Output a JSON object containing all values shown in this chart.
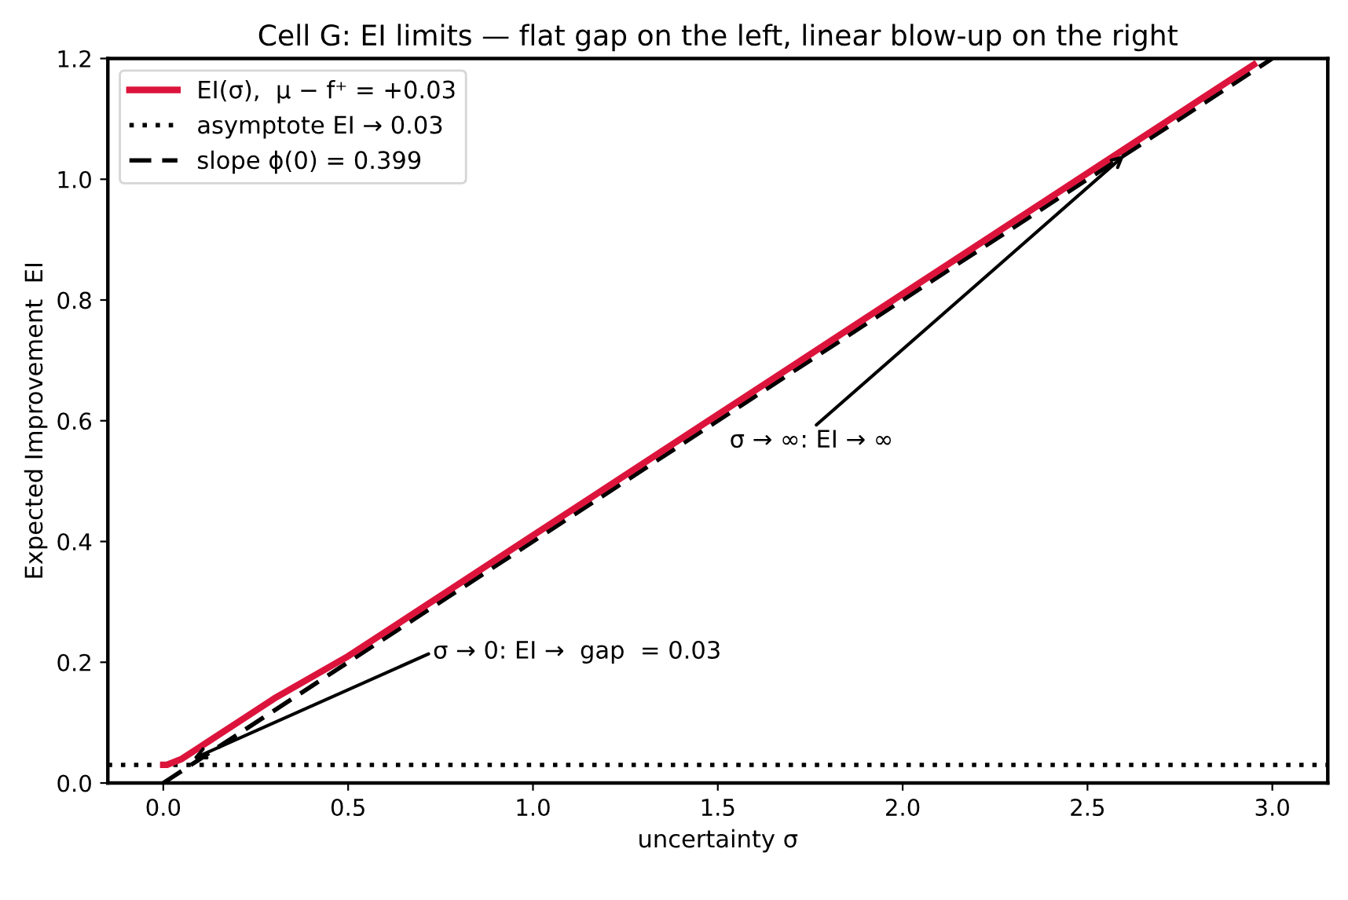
{
  "chart_data": {
    "type": "line",
    "title": "Cell G: EI limits — flat gap on the left, linear blow-up on the right",
    "xlabel": "uncertainty σ",
    "ylabel": "Expected Improvement  EI",
    "series": [
      {
        "name": "EI(σ),  μ − f⁺ = +0.03",
        "color": "#dc143c",
        "line_style": "solid",
        "x": [
          0,
          0.01,
          0.05,
          0.1,
          0.2,
          0.3,
          0.5,
          0.75,
          1.0,
          1.5,
          2.0,
          2.5,
          2.95
        ],
        "values": [
          0.03,
          0.03,
          0.04,
          0.06,
          0.1,
          0.14,
          0.21,
          0.31,
          0.41,
          0.61,
          0.81,
          1.01,
          1.19
        ]
      },
      {
        "name": "slope ϕ(0) = 0.399",
        "color": "#000000",
        "line_style": "dashed",
        "x": [
          0,
          3.0
        ],
        "values": [
          0,
          1.2
        ]
      }
    ],
    "ref_lines": [
      {
        "axis": "y",
        "value": 0.03,
        "label": "asymptote EI → 0.03",
        "color": "#000000",
        "line_style": "dotted"
      }
    ],
    "annotations": [
      {
        "text": "σ → 0: EI →  gap  = 0.03",
        "x": 0.08,
        "y": 0.04
      },
      {
        "text": "σ → ∞: EI → ∞",
        "x": 2.6,
        "y": 1.04
      }
    ],
    "xlim": [
      -0.15,
      3.15
    ],
    "ylim": [
      0,
      1.2
    ],
    "xticks": [
      {
        "value": 0,
        "label": "0.0"
      },
      0.5,
      {
        "value": 1,
        "label": "1.0"
      },
      1.5,
      {
        "value": 2,
        "label": "2.0"
      },
      2.5,
      {
        "value": 3,
        "label": "3.0"
      }
    ],
    "yticks": [
      {
        "value": 0,
        "label": "0.0"
      },
      0.2,
      0.4,
      0.6,
      0.8,
      {
        "value": 1,
        "label": "1.0"
      },
      1.2
    ],
    "legend": "top left",
    "grid": false,
    "marker": "none"
  }
}
